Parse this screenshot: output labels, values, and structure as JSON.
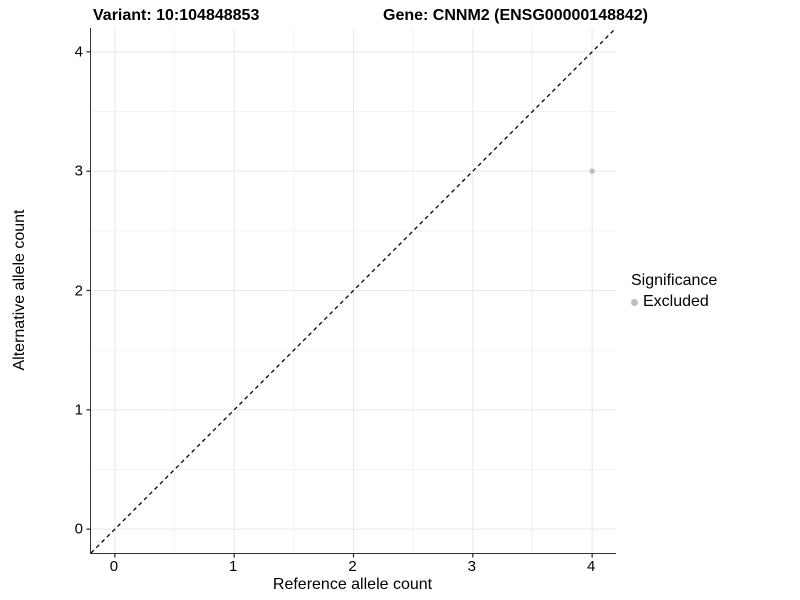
{
  "chart_data": {
    "type": "scatter",
    "title_left": "Variant: 10:104848853",
    "title_right": "Gene: CNNM2 (ENSG00000148842)",
    "xlabel": "Reference allele count",
    "ylabel": "Alternative allele count",
    "xlim": [
      -0.2,
      4.2
    ],
    "ylim": [
      -0.2,
      4.2
    ],
    "x_ticks": [
      0,
      1,
      2,
      3,
      4
    ],
    "y_ticks": [
      0,
      1,
      2,
      3,
      4
    ],
    "x_minor_ticks": [
      0.5,
      1.5,
      2.5,
      3.5
    ],
    "y_minor_ticks": [
      0.5,
      1.5,
      2.5,
      3.5
    ],
    "grid": "major+minor",
    "series": [
      {
        "name": "Excluded",
        "color": "#bdbdbd",
        "point_radius": 2.7,
        "points": [
          {
            "x": 4,
            "y": 3
          }
        ]
      }
    ],
    "reference_line": {
      "type": "identity",
      "style": "dashed",
      "color": "#000000",
      "from": [
        -0.2,
        -0.2
      ],
      "to": [
        4.2,
        4.2
      ]
    },
    "legend": {
      "title": "Significance",
      "position": "right",
      "entries": [
        {
          "label": "Excluded",
          "color": "#bdbdbd"
        }
      ]
    }
  },
  "colors": {
    "background": "#ffffff",
    "axis_line": "#333333",
    "tick_mark": "#333333",
    "grid_major": "#e8e8e8",
    "grid_minor": "#f3f3f3",
    "text": "#000000"
  }
}
